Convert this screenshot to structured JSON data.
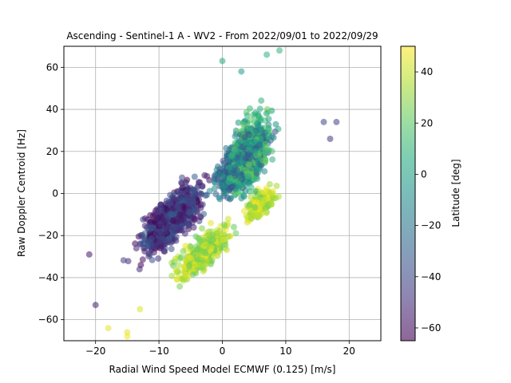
{
  "chart_data": {
    "type": "scatter",
    "title": "Ascending - Sentinel-1 A - WV2 - From 2022/09/01 to 2022/09/29",
    "xlabel": "Radial Wind Speed Model ECMWF (0.125) [m/s]",
    "ylabel": "Raw Doppler Centroid [Hz]",
    "xlim": [
      -25,
      25
    ],
    "ylim": [
      -70,
      70
    ],
    "xticks": [
      -20,
      -10,
      0,
      10,
      20
    ],
    "yticks": [
      -60,
      -40,
      -20,
      0,
      20,
      40,
      60
    ],
    "grid": true,
    "marker_alpha": 0.55,
    "colormap": "viridis",
    "colorbar": {
      "label": "Latitude [deg]",
      "range": [
        -65,
        50
      ],
      "ticks": [
        -60,
        -40,
        -20,
        0,
        20,
        40
      ]
    },
    "point_groups": [
      {
        "lat_range": [
          -65,
          -30
        ],
        "x_center": -8,
        "y_center": -12,
        "x_spread": 6,
        "y_spread": 14,
        "slope": 2.5,
        "count": 900
      },
      {
        "lat_range": [
          -40,
          -5
        ],
        "x_center": 3,
        "y_center": 15,
        "x_spread": 5,
        "y_spread": 14,
        "slope": 2.5,
        "count": 700
      },
      {
        "lat_range": [
          -10,
          25
        ],
        "x_center": 4,
        "y_center": 18,
        "x_spread": 4,
        "y_spread": 20,
        "slope": 2.5,
        "count": 650
      },
      {
        "lat_range": [
          20,
          50
        ],
        "x_center": -3,
        "y_center": -28,
        "x_spread": 5,
        "y_spread": 10,
        "slope": 2.0,
        "count": 420
      },
      {
        "lat_range": [
          20,
          50
        ],
        "x_center": 6,
        "y_center": -5,
        "x_spread": 3,
        "y_spread": 8,
        "slope": 2.0,
        "count": 220
      }
    ],
    "extreme_points": [
      {
        "x": -18,
        "y": -64,
        "lat": 46
      },
      {
        "x": -15,
        "y": -66,
        "lat": 45
      },
      {
        "x": -15,
        "y": -68,
        "lat": 47
      },
      {
        "x": -13,
        "y": -55,
        "lat": 44
      },
      {
        "x": -20,
        "y": -53,
        "lat": -55
      },
      {
        "x": -21,
        "y": -29,
        "lat": -58
      },
      {
        "x": 17,
        "y": 26,
        "lat": -45
      },
      {
        "x": 18,
        "y": 34,
        "lat": -42
      },
      {
        "x": 16,
        "y": 34,
        "lat": -40
      },
      {
        "x": 7,
        "y": 66,
        "lat": 8
      },
      {
        "x": 9,
        "y": 68,
        "lat": 10
      },
      {
        "x": 0,
        "y": 63,
        "lat": 5
      },
      {
        "x": 3,
        "y": 58,
        "lat": -2
      }
    ]
  }
}
